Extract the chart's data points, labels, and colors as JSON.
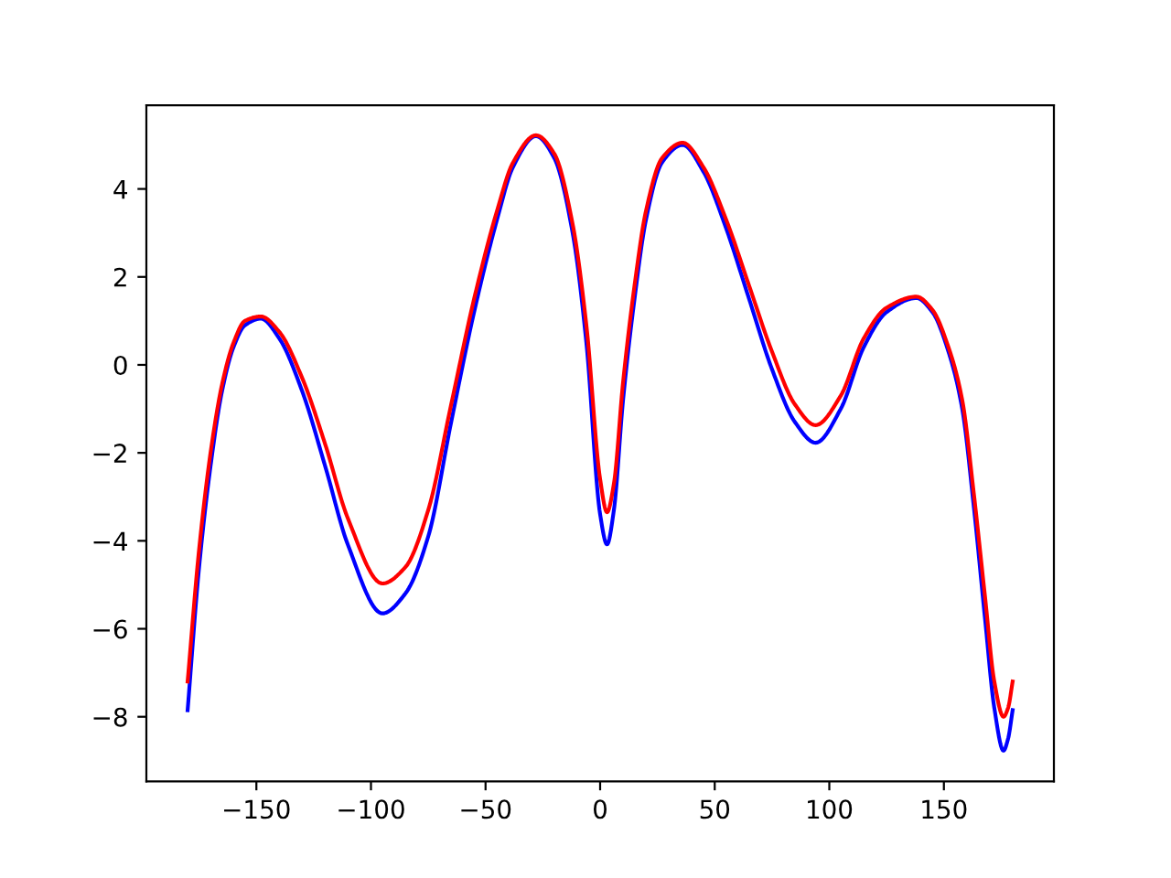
{
  "chart_data": {
    "type": "line",
    "x": [
      -180,
      -175,
      -170,
      -165,
      -160,
      -155,
      -148,
      -140,
      -130,
      -120,
      -110,
      -95,
      -85,
      -75,
      -65,
      -55,
      -45,
      -38,
      -28,
      -20,
      -12,
      -6,
      0,
      3,
      6,
      10,
      15,
      20,
      27,
      36,
      45,
      55,
      65,
      75,
      85,
      94,
      105,
      115,
      125,
      138,
      145,
      152,
      158,
      163,
      168,
      172,
      176,
      178,
      180
    ],
    "series": [
      {
        "color": "#0000ff",
        "values": [
          -7.85,
          -4.6,
          -2.3,
          -0.6,
          0.4,
          0.9,
          1.05,
          0.6,
          -0.6,
          -2.3,
          -4.1,
          -5.65,
          -5.2,
          -3.9,
          -1.3,
          1.2,
          3.3,
          4.5,
          5.2,
          4.7,
          3.0,
          0.5,
          -3.4,
          -4.08,
          -3.3,
          -0.8,
          1.5,
          3.3,
          4.6,
          5.0,
          4.4,
          3.1,
          1.5,
          -0.1,
          -1.3,
          -1.77,
          -1.0,
          0.4,
          1.2,
          1.52,
          1.2,
          0.3,
          -1.0,
          -3.2,
          -5.8,
          -7.8,
          -8.77,
          -8.5,
          -7.85
        ]
      },
      {
        "color": "#ff0000",
        "values": [
          -7.2,
          -4.2,
          -2.0,
          -0.45,
          0.5,
          1.0,
          1.1,
          0.75,
          -0.3,
          -1.8,
          -3.5,
          -4.97,
          -4.6,
          -3.3,
          -0.9,
          1.5,
          3.5,
          4.6,
          5.22,
          4.8,
          3.2,
          0.9,
          -2.6,
          -3.35,
          -2.7,
          -0.4,
          1.8,
          3.5,
          4.7,
          5.05,
          4.5,
          3.3,
          1.8,
          0.3,
          -0.9,
          -1.37,
          -0.7,
          0.6,
          1.3,
          1.55,
          1.25,
          0.4,
          -0.8,
          -2.9,
          -5.3,
          -7.2,
          -8.0,
          -7.8,
          -7.2
        ]
      }
    ],
    "xlim": [
      -198,
      198
    ],
    "ylim": [
      -9.47,
      5.9
    ],
    "xticks": [
      {
        "value": -150,
        "label": "−150"
      },
      {
        "value": -100,
        "label": "−100"
      },
      {
        "value": -50,
        "label": "−50"
      },
      0,
      50,
      100,
      150
    ],
    "yticks": [
      {
        "value": -8,
        "label": "−8"
      },
      {
        "value": -6,
        "label": "−6"
      },
      {
        "value": -4,
        "label": "−4"
      },
      {
        "value": -2,
        "label": "−2"
      },
      0,
      2,
      4
    ],
    "marker": "none",
    "line_style": "solid"
  }
}
